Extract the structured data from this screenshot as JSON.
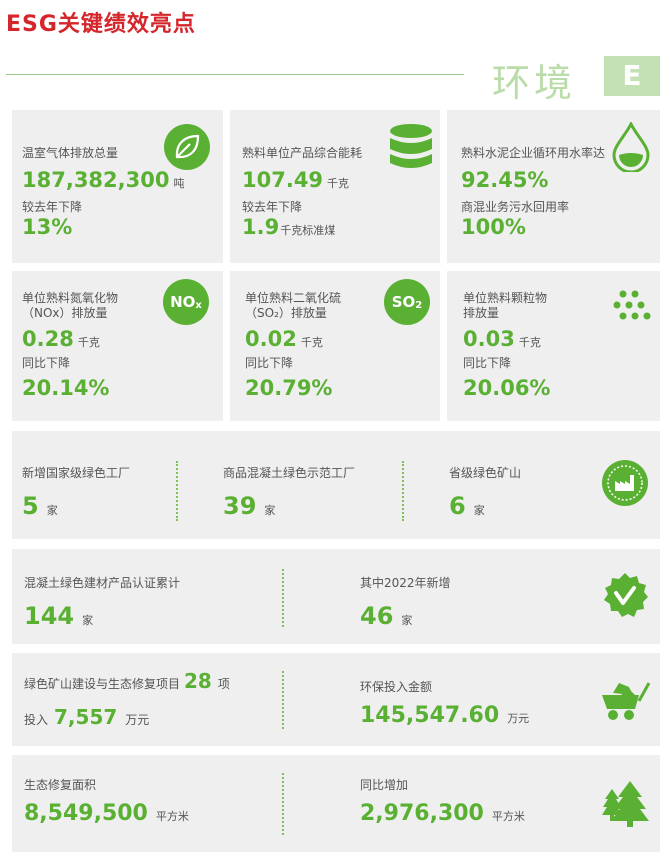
{
  "page_title": "ESG关键绩效亮点",
  "section": {
    "name": "环境",
    "badge": "E"
  },
  "colors": {
    "green": "#5ab033",
    "title_red": "#d4262b",
    "card_bg": "#efefef"
  },
  "row1": [
    {
      "label": "温室气体排放总量",
      "value": "187,382,300",
      "unit": "吨",
      "sub_label": "较去年下降",
      "sub_value": "13%",
      "sub_unit": "",
      "icon": "leaf-icon"
    },
    {
      "label": "熟料单位产品综合能耗",
      "value": "107.49",
      "unit": "千克",
      "sub_label": "较去年下降",
      "sub_value": "1.9",
      "sub_unit": "千克标准煤",
      "icon": "database-icon"
    },
    {
      "label": "熟料水泥企业循环用水率达",
      "value": "92.45%",
      "unit": "",
      "sub_label": "商混业务污水回用率",
      "sub_value": "100%",
      "sub_unit": "",
      "icon": "water-drop-icon"
    }
  ],
  "row2": [
    {
      "label1": "单位熟料氮氧化物",
      "label2": "（NOx）排放量",
      "value": "0.28",
      "unit": "千克",
      "sub_label": "同比下降",
      "sub_value": "20.14%",
      "icon_main": "NO",
      "icon_sub": "x"
    },
    {
      "label1": "单位熟料二氧化硫",
      "label2": "（SO₂）排放量",
      "value": "0.02",
      "unit": "千克",
      "sub_label": "同比下降",
      "sub_value": "20.79%",
      "icon_main": "SO",
      "icon_sub": "2"
    },
    {
      "label1": "单位熟料颗粒物",
      "label2": "排放量",
      "value": "0.03",
      "unit": "千克",
      "sub_label": "同比下降",
      "sub_value": "20.06%",
      "icon": "particles-icon"
    }
  ],
  "factories": [
    {
      "label": "新增国家级绿色工厂",
      "value": "5",
      "unit": "家"
    },
    {
      "label": "商品混凝土绿色示范工厂",
      "value": "39",
      "unit": "家"
    },
    {
      "label": "省级绿色矿山",
      "value": "6",
      "unit": "家"
    }
  ],
  "certification": [
    {
      "label": "混凝土绿色建材产品认证累计",
      "value": "144",
      "unit": "家"
    },
    {
      "label": "其中2022年新增",
      "value": "46",
      "unit": "家"
    }
  ],
  "mining": {
    "label": "绿色矿山建设与生态修复项目",
    "count": "28",
    "count_unit": "项",
    "invest_label": "投入",
    "invest_value": "7,557",
    "invest_unit": "万元",
    "env_label": "环保投入金额",
    "env_value": "145,547.60",
    "env_unit": "万元"
  },
  "restoration": {
    "label": "生态修复面积",
    "value": "8,549,500",
    "unit": "平方米",
    "growth_label": "同比增加",
    "growth_value": "2,976,300",
    "growth_unit": "平方米"
  }
}
